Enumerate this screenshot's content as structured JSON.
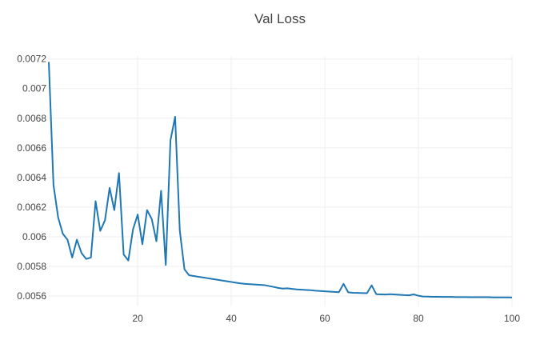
{
  "chart_data": {
    "type": "line",
    "title": "Val Loss",
    "xlabel": "",
    "ylabel": "",
    "xlim": [
      1,
      100
    ],
    "ylim": [
      0.00553,
      0.00722
    ],
    "grid": true,
    "legend": "none",
    "x_ticks": [
      20,
      40,
      60,
      80,
      100
    ],
    "x_tick_labels": [
      "20",
      "40",
      "60",
      "80",
      "100"
    ],
    "y_ticks": [
      0.0056,
      0.0058,
      0.006,
      0.0062,
      0.0064,
      0.0066,
      0.0068,
      0.007,
      0.0072
    ],
    "y_tick_labels": [
      "0.0056",
      "0.0058",
      "0.006",
      "0.0062",
      "0.0064",
      "0.0066",
      "0.0068",
      "0.007",
      "0.0072"
    ],
    "line_color": "#1f77b4",
    "series": [
      {
        "x": [
          1,
          2,
          3,
          4,
          5,
          6,
          7,
          8,
          9,
          10,
          11,
          12,
          13,
          14,
          15,
          16,
          17,
          18,
          19,
          20,
          21,
          22,
          23,
          24,
          25,
          26,
          27,
          28,
          29,
          30,
          31,
          32,
          33,
          34,
          35,
          36,
          37,
          38,
          39,
          40,
          41,
          42,
          43,
          44,
          45,
          46,
          47,
          48,
          49,
          50,
          51,
          52,
          53,
          54,
          55,
          56,
          57,
          58,
          59,
          60,
          61,
          62,
          63,
          64,
          65,
          66,
          67,
          68,
          69,
          70,
          71,
          72,
          73,
          74,
          75,
          76,
          77,
          78,
          79,
          80,
          81,
          82,
          83,
          84,
          85,
          86,
          87,
          88,
          89,
          90,
          91,
          92,
          93,
          94,
          95,
          96,
          97,
          98,
          99,
          100
        ],
        "values": [
          0.00718,
          0.00635,
          0.00613,
          0.00602,
          0.00598,
          0.00586,
          0.00598,
          0.00589,
          0.00585,
          0.00586,
          0.00624,
          0.00604,
          0.00611,
          0.00633,
          0.00618,
          0.00643,
          0.00588,
          0.00584,
          0.00605,
          0.00615,
          0.00595,
          0.00618,
          0.00612,
          0.00597,
          0.00631,
          0.00581,
          0.00665,
          0.00681,
          0.00604,
          0.00578,
          0.00574,
          0.005735,
          0.00573,
          0.005725,
          0.00572,
          0.005715,
          0.00571,
          0.005705,
          0.0057,
          0.005695,
          0.00569,
          0.005685,
          0.005682,
          0.00568,
          0.005678,
          0.005676,
          0.005674,
          0.005668,
          0.005662,
          0.005655,
          0.00565,
          0.005652,
          0.005648,
          0.005645,
          0.005643,
          0.005641,
          0.005639,
          0.005636,
          0.005634,
          0.005632,
          0.00563,
          0.005628,
          0.005626,
          0.005682,
          0.005625,
          0.005622,
          0.005621,
          0.00562,
          0.005619,
          0.005672,
          0.005612,
          0.005611,
          0.00561,
          0.005612,
          0.00561,
          0.005608,
          0.005606,
          0.005605,
          0.005611,
          0.005602,
          0.005597,
          0.005596,
          0.005595,
          0.005595,
          0.005594,
          0.005594,
          0.005594,
          0.005593,
          0.005593,
          0.005593,
          0.005592,
          0.005592,
          0.005592,
          0.005592,
          0.005592,
          0.005591,
          0.005591,
          0.005591,
          0.005591,
          0.00559
        ]
      }
    ]
  }
}
